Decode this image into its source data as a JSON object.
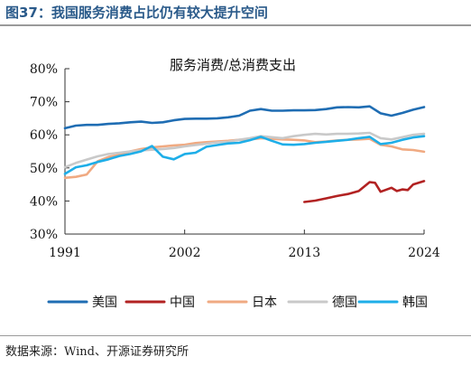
{
  "figure_title": "图37：我国服务消费占比仍有较大提升空间",
  "source": "数据来源：Wind、开源证券研究所",
  "chart_data": {
    "type": "line",
    "title": "服务消费/总消费支出",
    "xlabel": "",
    "ylabel": "",
    "xlim": [
      1991,
      2024
    ],
    "ylim": [
      30,
      80
    ],
    "x_ticks": [
      1991,
      2002,
      2013,
      2024
    ],
    "x_tick_labels": [
      "1991",
      "2002",
      "2013",
      "2024"
    ],
    "y_ticks": [
      30,
      40,
      50,
      60,
      70,
      80
    ],
    "y_tick_labels": [
      "30%",
      "40%",
      "50%",
      "60%",
      "70%",
      "80%"
    ],
    "grid": false,
    "legend_position": "bottom",
    "series": [
      {
        "name": "美国",
        "color": "#1f6db3",
        "points": [
          [
            1991,
            62.0
          ],
          [
            1992,
            62.8
          ],
          [
            1993,
            63.0
          ],
          [
            1994,
            63.0
          ],
          [
            1995,
            63.3
          ],
          [
            1996,
            63.5
          ],
          [
            1997,
            63.8
          ],
          [
            1998,
            64.0
          ],
          [
            1999,
            63.6
          ],
          [
            2000,
            63.8
          ],
          [
            2001,
            64.4
          ],
          [
            2002,
            64.8
          ],
          [
            2003,
            64.9
          ],
          [
            2004,
            64.9
          ],
          [
            2005,
            65.0
          ],
          [
            2006,
            65.3
          ],
          [
            2007,
            65.8
          ],
          [
            2008,
            67.3
          ],
          [
            2009,
            67.8
          ],
          [
            2010,
            67.3
          ],
          [
            2011,
            67.3
          ],
          [
            2012,
            67.4
          ],
          [
            2013,
            67.4
          ],
          [
            2014,
            67.5
          ],
          [
            2015,
            67.8
          ],
          [
            2016,
            68.3
          ],
          [
            2017,
            68.4
          ],
          [
            2018,
            68.3
          ],
          [
            2019,
            68.6
          ],
          [
            2020,
            66.5
          ],
          [
            2021,
            65.8
          ],
          [
            2022,
            66.6
          ],
          [
            2023,
            67.6
          ],
          [
            2024,
            68.4
          ]
        ]
      },
      {
        "name": "中国",
        "color": "#b22222",
        "points": [
          [
            2013,
            39.7
          ],
          [
            2014,
            40.1
          ],
          [
            2015,
            40.8
          ],
          [
            2016,
            41.5
          ],
          [
            2017,
            42.1
          ],
          [
            2018,
            43.0
          ],
          [
            2019,
            45.7
          ],
          [
            2019.5,
            45.5
          ],
          [
            2020,
            42.8
          ],
          [
            2021,
            44.0
          ],
          [
            2021.5,
            43.0
          ],
          [
            2022,
            43.5
          ],
          [
            2022.5,
            43.3
          ],
          [
            2023,
            45.0
          ],
          [
            2024,
            46.0
          ]
        ]
      },
      {
        "name": "日本",
        "color": "#f0aa82",
        "points": [
          [
            1991,
            47.0
          ],
          [
            1992,
            47.3
          ],
          [
            1993,
            48.0
          ],
          [
            1994,
            52.0
          ],
          [
            1995,
            53.3
          ],
          [
            1996,
            54.0
          ],
          [
            1997,
            55.0
          ],
          [
            1998,
            55.7
          ],
          [
            1999,
            56.2
          ],
          [
            2000,
            56.5
          ],
          [
            2001,
            56.8
          ],
          [
            2002,
            57.0
          ],
          [
            2003,
            57.5
          ],
          [
            2004,
            57.8
          ],
          [
            2005,
            58.0
          ],
          [
            2006,
            58.2
          ],
          [
            2007,
            58.5
          ],
          [
            2008,
            58.6
          ],
          [
            2009,
            59.0
          ],
          [
            2010,
            58.8
          ],
          [
            2011,
            58.6
          ],
          [
            2012,
            58.5
          ],
          [
            2013,
            58.3
          ],
          [
            2014,
            57.8
          ],
          [
            2015,
            58.0
          ],
          [
            2016,
            58.3
          ],
          [
            2017,
            58.5
          ],
          [
            2018,
            58.6
          ],
          [
            2019,
            58.8
          ],
          [
            2020,
            57.0
          ],
          [
            2021,
            56.5
          ],
          [
            2022,
            55.6
          ],
          [
            2023,
            55.4
          ],
          [
            2024,
            54.9
          ]
        ]
      },
      {
        "name": "德国",
        "color": "#c9c9c9",
        "points": [
          [
            1991,
            50.2
          ],
          [
            1992,
            51.5
          ],
          [
            1993,
            52.5
          ],
          [
            1994,
            53.5
          ],
          [
            1995,
            54.2
          ],
          [
            1996,
            54.6
          ],
          [
            1997,
            55.0
          ],
          [
            1998,
            55.3
          ],
          [
            1999,
            55.5
          ],
          [
            2000,
            55.7
          ],
          [
            2001,
            56.0
          ],
          [
            2002,
            56.5
          ],
          [
            2003,
            56.9
          ],
          [
            2004,
            57.3
          ],
          [
            2005,
            57.7
          ],
          [
            2006,
            57.9
          ],
          [
            2007,
            58.5
          ],
          [
            2008,
            59.0
          ],
          [
            2009,
            59.6
          ],
          [
            2010,
            59.3
          ],
          [
            2011,
            59.0
          ],
          [
            2012,
            59.6
          ],
          [
            2013,
            60.0
          ],
          [
            2014,
            60.3
          ],
          [
            2015,
            60.1
          ],
          [
            2016,
            60.3
          ],
          [
            2017,
            60.3
          ],
          [
            2018,
            60.4
          ],
          [
            2019,
            60.6
          ],
          [
            2020,
            59.0
          ],
          [
            2021,
            58.6
          ],
          [
            2022,
            59.3
          ],
          [
            2023,
            60.0
          ],
          [
            2024,
            60.3
          ]
        ]
      },
      {
        "name": "韩国",
        "color": "#1eaee8",
        "points": [
          [
            1991,
            48.2
          ],
          [
            1992,
            50.2
          ],
          [
            1993,
            50.8
          ],
          [
            1994,
            51.8
          ],
          [
            1995,
            52.6
          ],
          [
            1996,
            53.6
          ],
          [
            1997,
            54.2
          ],
          [
            1998,
            55.0
          ],
          [
            1999,
            56.6
          ],
          [
            2000,
            53.4
          ],
          [
            2001,
            52.6
          ],
          [
            2002,
            54.2
          ],
          [
            2003,
            54.6
          ],
          [
            2004,
            56.4
          ],
          [
            2005,
            56.9
          ],
          [
            2006,
            57.4
          ],
          [
            2007,
            57.6
          ],
          [
            2008,
            58.4
          ],
          [
            2009,
            59.4
          ],
          [
            2010,
            58.2
          ],
          [
            2011,
            57.1
          ],
          [
            2012,
            57.0
          ],
          [
            2013,
            57.2
          ],
          [
            2014,
            57.6
          ],
          [
            2015,
            57.9
          ],
          [
            2016,
            58.2
          ],
          [
            2017,
            58.5
          ],
          [
            2018,
            59.0
          ],
          [
            2019,
            59.4
          ],
          [
            2020,
            57.2
          ],
          [
            2021,
            57.6
          ],
          [
            2022,
            58.5
          ],
          [
            2023,
            59.2
          ],
          [
            2024,
            59.6
          ]
        ]
      }
    ]
  }
}
